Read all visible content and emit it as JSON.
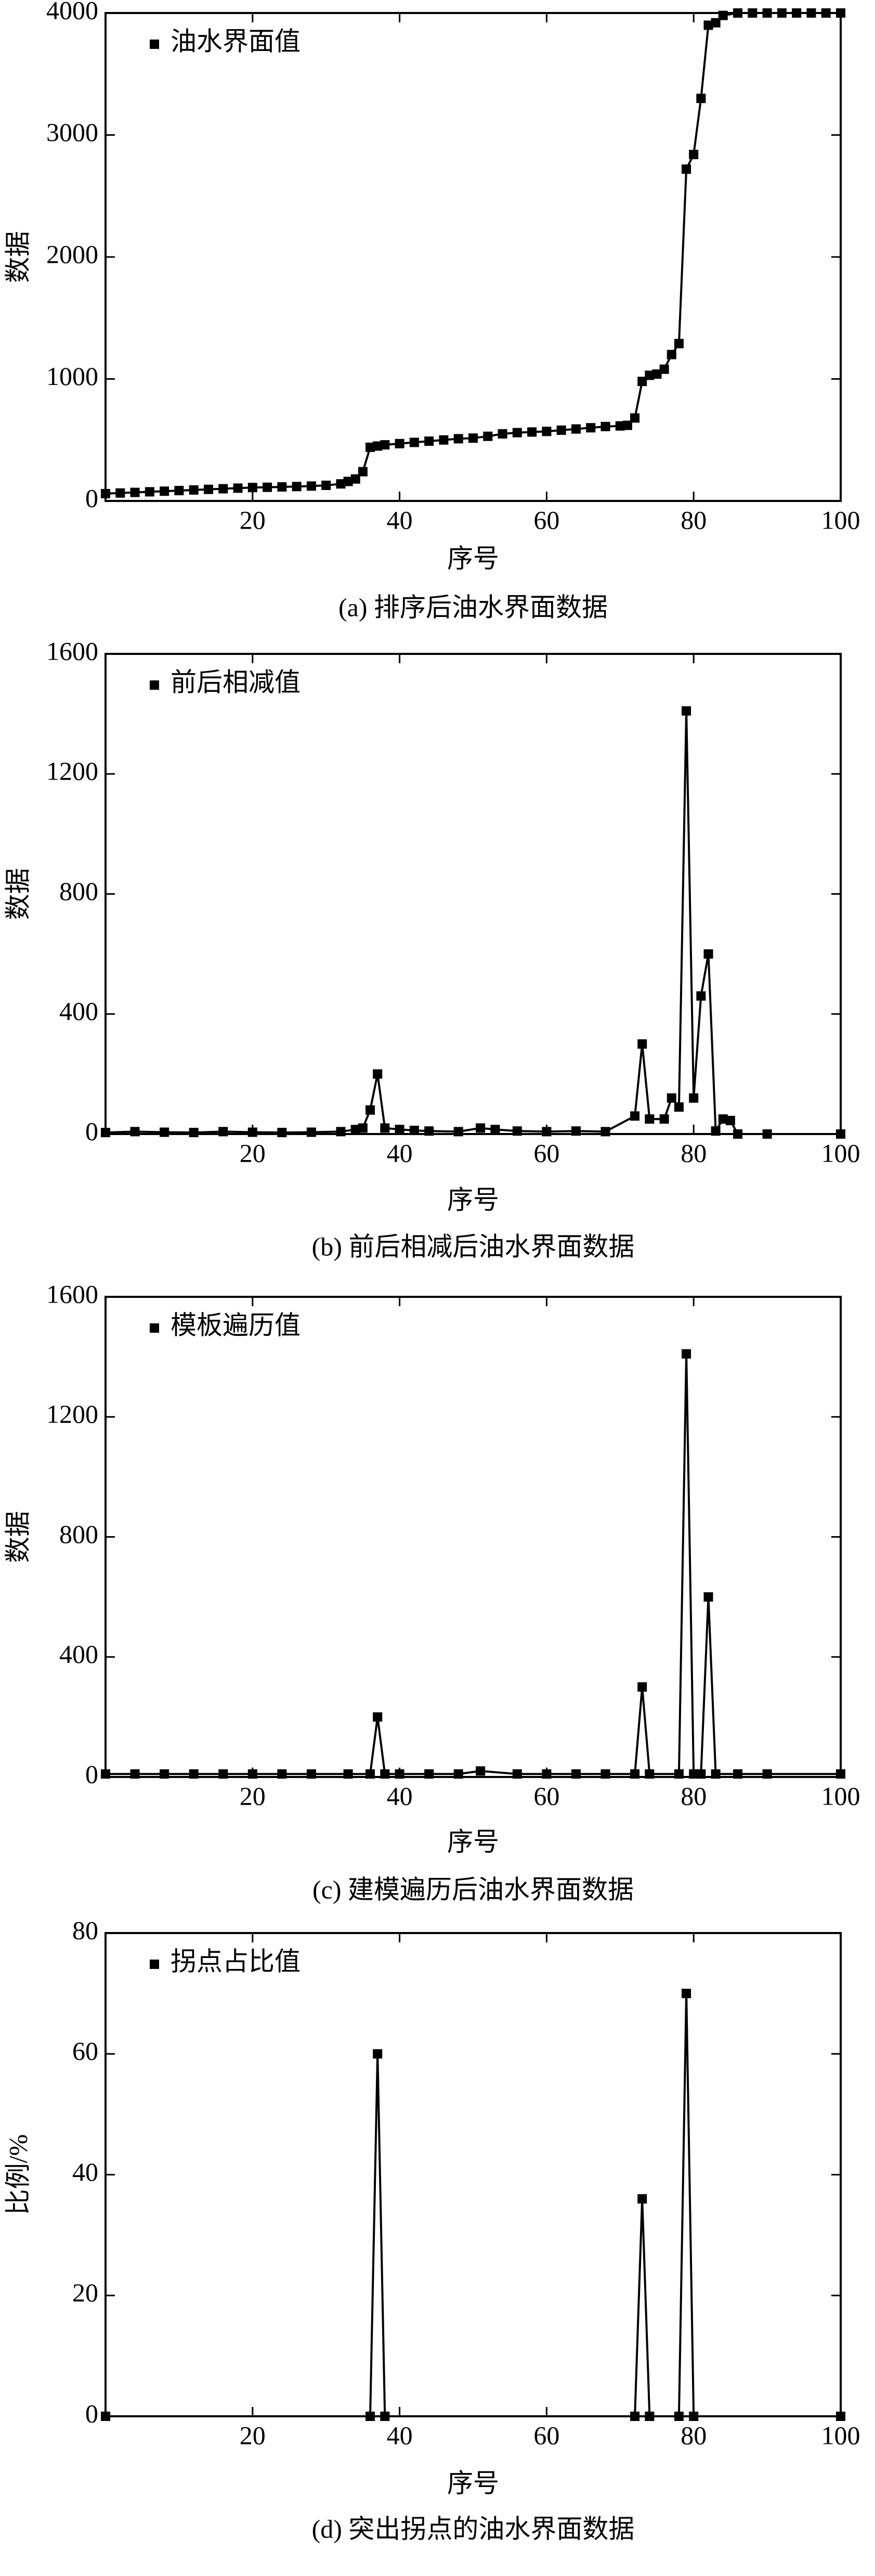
{
  "chart_data": [
    {
      "type": "line",
      "caption": "(a) 排序后油水界面数据",
      "xlabel": "序号",
      "ylabel": "数据",
      "x": [
        0,
        2,
        4,
        6,
        8,
        10,
        12,
        14,
        16,
        18,
        20,
        22,
        24,
        26,
        28,
        30,
        32,
        33,
        34,
        35,
        36,
        37,
        38,
        40,
        42,
        44,
        46,
        48,
        50,
        52,
        54,
        56,
        58,
        60,
        62,
        64,
        66,
        68,
        70,
        71,
        72,
        73,
        74,
        75,
        76,
        77,
        78,
        79,
        80,
        81,
        82,
        83,
        84,
        86,
        88,
        90,
        92,
        94,
        96,
        98,
        100
      ],
      "series": [
        {
          "name": "油水界面值",
          "color": "#000000",
          "values": [
            60,
            65,
            70,
            75,
            80,
            85,
            90,
            95,
            100,
            105,
            110,
            112,
            115,
            118,
            122,
            128,
            140,
            160,
            180,
            240,
            440,
            450,
            460,
            470,
            480,
            490,
            500,
            510,
            515,
            530,
            550,
            560,
            565,
            570,
            580,
            590,
            600,
            610,
            615,
            620,
            680,
            980,
            1030,
            1040,
            1080,
            1200,
            1290,
            2720,
            2840,
            3300,
            3900,
            3920,
            3980,
            4000,
            4000,
            4000,
            4000,
            4000,
            4000,
            4000,
            4000
          ]
        }
      ],
      "xlim": [
        0,
        100
      ],
      "xticks": [
        20,
        40,
        60,
        80,
        100
      ],
      "ylim": [
        0,
        4000
      ],
      "yticks": [
        0,
        1000,
        2000,
        3000,
        4000
      ]
    },
    {
      "type": "line",
      "caption": "(b) 前后相减后油水界面数据",
      "xlabel": "序号",
      "ylabel": "数据",
      "x": [
        0,
        4,
        8,
        12,
        16,
        20,
        24,
        28,
        32,
        34,
        35,
        36,
        37,
        38,
        40,
        42,
        44,
        48,
        51,
        53,
        56,
        60,
        64,
        68,
        72,
        73,
        74,
        76,
        77,
        78,
        79,
        80,
        81,
        82,
        83,
        84,
        85,
        86,
        90,
        100
      ],
      "series": [
        {
          "name": "前后相减值",
          "color": "#000000",
          "values": [
            5,
            8,
            6,
            5,
            8,
            6,
            5,
            6,
            8,
            15,
            20,
            80,
            200,
            20,
            15,
            12,
            10,
            8,
            20,
            15,
            10,
            8,
            10,
            8,
            60,
            300,
            50,
            50,
            120,
            90,
            1410,
            120,
            460,
            600,
            10,
            50,
            45,
            0,
            0,
            0
          ]
        }
      ],
      "xlim": [
        0,
        100
      ],
      "xticks": [
        20,
        40,
        60,
        80,
        100
      ],
      "ylim": [
        0,
        1600
      ],
      "yticks": [
        0,
        400,
        800,
        1200,
        1600
      ]
    },
    {
      "type": "line",
      "caption": "(c) 建模遍历后油水界面数据",
      "xlabel": "序号",
      "ylabel": "数据",
      "x": [
        0,
        4,
        8,
        12,
        16,
        20,
        24,
        28,
        33,
        36,
        37,
        38,
        40,
        44,
        48,
        51,
        56,
        60,
        64,
        68,
        72,
        73,
        74,
        78,
        79,
        80,
        81,
        82,
        83,
        86,
        90,
        100
      ],
      "series": [
        {
          "name": "模板遍历值",
          "color": "#000000",
          "values": [
            10,
            10,
            10,
            10,
            10,
            10,
            10,
            10,
            10,
            10,
            200,
            10,
            10,
            10,
            10,
            20,
            10,
            10,
            10,
            10,
            10,
            300,
            10,
            10,
            1410,
            10,
            10,
            600,
            10,
            10,
            10,
            10
          ]
        }
      ],
      "xlim": [
        0,
        100
      ],
      "xticks": [
        20,
        40,
        60,
        80,
        100
      ],
      "ylim": [
        0,
        1600
      ],
      "yticks": [
        0,
        400,
        800,
        1200,
        1600
      ]
    },
    {
      "type": "line",
      "caption": "(d) 突出拐点的油水界面数据",
      "xlabel": "序号",
      "ylabel": "比例/%",
      "x": [
        0,
        36,
        37,
        38,
        72,
        73,
        74,
        78,
        79,
        80,
        100
      ],
      "series": [
        {
          "name": "拐点占比值",
          "color": "#000000",
          "values": [
            0,
            0,
            60,
            0,
            0,
            36,
            0,
            0,
            70,
            0,
            0
          ]
        }
      ],
      "xlim": [
        0,
        100
      ],
      "xticks": [
        20,
        40,
        60,
        80,
        100
      ],
      "ylim": [
        0,
        80
      ],
      "yticks": [
        0,
        20,
        40,
        60,
        80
      ]
    }
  ]
}
